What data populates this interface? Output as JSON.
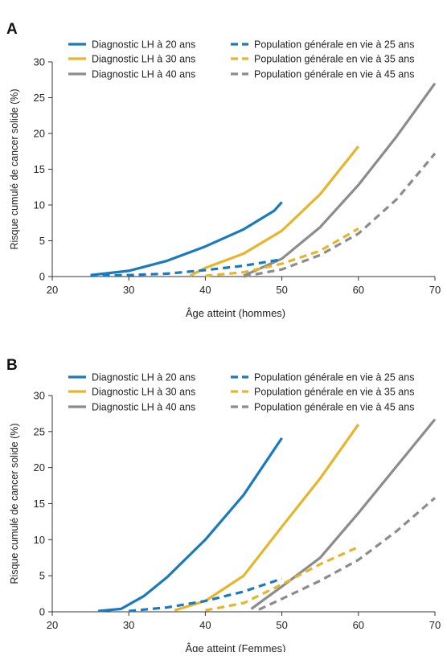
{
  "chart_data": [
    {
      "type": "line",
      "panel_label": "A",
      "xlabel": "Âge atteint (hommes)",
      "ylabel": "Risque cumulé de cancer solide (%)",
      "xlim": [
        20,
        70
      ],
      "ylim": [
        0,
        30
      ],
      "xticks": [
        20,
        30,
        40,
        50,
        60,
        70
      ],
      "yticks": [
        0,
        5,
        10,
        15,
        20,
        25,
        30
      ],
      "legend_position": "top",
      "series": [
        {
          "name": "Diagnostic LH à 20 ans",
          "color": "#1a7abf",
          "style": "solid",
          "x": [
            25,
            30,
            35,
            40,
            45,
            49,
            50
          ],
          "y": [
            0.2,
            0.8,
            2.2,
            4.2,
            6.6,
            9.2,
            10.4
          ]
        },
        {
          "name": "Diagnostic LH à 30 ans",
          "color": "#e8b52a",
          "style": "solid",
          "x": [
            38,
            40,
            45,
            50,
            55,
            60
          ],
          "y": [
            0.1,
            1.2,
            3.2,
            6.4,
            11.5,
            18.2
          ]
        },
        {
          "name": "Diagnostic LH à 40 ans",
          "color": "#8c8c8c",
          "style": "solid",
          "x": [
            45,
            50,
            55,
            60,
            65,
            70
          ],
          "y": [
            0.1,
            2.5,
            6.9,
            12.8,
            19.6,
            27.0
          ]
        },
        {
          "name": "Population générale en vie à 25 ans",
          "color": "#1a7abf",
          "style": "dashed",
          "x": [
            25,
            30,
            35,
            40,
            45,
            50
          ],
          "y": [
            0.1,
            0.2,
            0.4,
            0.9,
            1.5,
            2.4
          ]
        },
        {
          "name": "Population générale en vie à 35 ans",
          "color": "#e8b52a",
          "style": "dashed",
          "x": [
            40,
            45,
            50,
            55,
            60
          ],
          "y": [
            0.1,
            0.6,
            1.8,
            3.6,
            6.7
          ]
        },
        {
          "name": "Population générale en vie à 45 ans",
          "color": "#8c8c8c",
          "style": "dashed",
          "x": [
            45,
            50,
            55,
            60,
            65,
            70
          ],
          "y": [
            0.0,
            1.0,
            3.0,
            6.0,
            10.8,
            17.2
          ]
        }
      ]
    },
    {
      "type": "line",
      "panel_label": "B",
      "xlabel": "Âge atteint (Femmes)",
      "ylabel": "Risque cumulé de cancer solide (%)",
      "xlim": [
        20,
        70
      ],
      "ylim": [
        0,
        30
      ],
      "xticks": [
        20,
        30,
        40,
        50,
        60,
        70
      ],
      "yticks": [
        0,
        5,
        10,
        15,
        20,
        25,
        30
      ],
      "legend_position": "top",
      "series": [
        {
          "name": "Diagnostic LH à 20 ans",
          "color": "#1a7abf",
          "style": "solid",
          "x": [
            26,
            29,
            32,
            35,
            40,
            45,
            50
          ],
          "y": [
            0.1,
            0.4,
            2.2,
            4.8,
            10.0,
            16.2,
            24.1
          ]
        },
        {
          "name": "Diagnostic LH à 30 ans",
          "color": "#e8b52a",
          "style": "solid",
          "x": [
            36,
            40,
            45,
            50,
            55,
            60
          ],
          "y": [
            0.2,
            1.5,
            5.0,
            11.8,
            18.5,
            26.0
          ]
        },
        {
          "name": "Diagnostic LH à 40 ans",
          "color": "#8c8c8c",
          "style": "solid",
          "x": [
            46,
            50,
            55,
            60,
            65,
            70
          ],
          "y": [
            0.4,
            3.5,
            7.5,
            13.7,
            20.2,
            26.7
          ]
        },
        {
          "name": "Population générale en vie à 25 ans",
          "color": "#1a7abf",
          "style": "dashed",
          "x": [
            30,
            35,
            40,
            45,
            50
          ],
          "y": [
            0.1,
            0.6,
            1.5,
            2.8,
            4.6
          ]
        },
        {
          "name": "Population générale en vie à 35 ans",
          "color": "#e8b52a",
          "style": "dashed",
          "x": [
            40,
            45,
            50,
            55,
            60
          ],
          "y": [
            0.2,
            1.2,
            3.8,
            6.6,
            9.0
          ]
        },
        {
          "name": "Population générale en vie à 45 ans",
          "color": "#8c8c8c",
          "style": "dashed",
          "x": [
            47,
            50,
            55,
            60,
            65,
            70
          ],
          "y": [
            0.3,
            1.8,
            4.3,
            7.2,
            11.2,
            15.8
          ]
        }
      ]
    }
  ]
}
